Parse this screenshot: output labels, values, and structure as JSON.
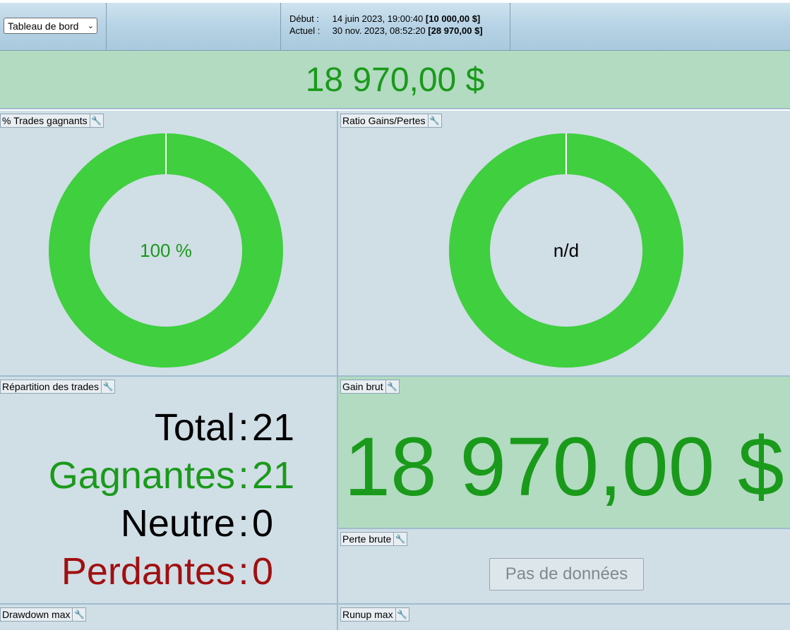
{
  "header": {
    "view_select": "Tableau de bord",
    "start_label": "Début :",
    "start_date": "14 juin 2023, 19:00:40",
    "start_balance": "[10 000,00 $]",
    "current_label": "Actuel :",
    "current_date": "30 nov. 2023, 08:52:20",
    "current_balance": "[28 970,00 $]"
  },
  "net_profit": "18 970,00 $",
  "panels": {
    "win_pct": {
      "title": "% Trades gagnants",
      "value_label": "100 %",
      "fill_fraction": 1.0
    },
    "profit_ratio": {
      "title": "Ratio Gains/Pertes",
      "value_label": "n/d",
      "fill_fraction": 1.0
    },
    "distribution": {
      "title": "Répartition des trades",
      "rows": [
        {
          "label": "Total",
          "sep": ":",
          "value": "21"
        },
        {
          "label": "Gagnantes",
          "sep": ":",
          "value": "21"
        },
        {
          "label": "Neutre",
          "sep": ":",
          "value": "0"
        },
        {
          "label": "Perdantes",
          "sep": ":",
          "value": "0"
        }
      ]
    },
    "gross_gain": {
      "title": "Gain brut",
      "value": "18 970,00 $"
    },
    "gross_loss": {
      "title": "Perte brute",
      "no_data": "Pas de données"
    },
    "max_drawdown": {
      "title": "Drawdown max"
    },
    "max_runup": {
      "title": "Runup max"
    }
  },
  "colors": {
    "win_green": "#1a9a1a",
    "loss_red": "#a01010",
    "donut_green": "#3fcf3f",
    "panel_bg": "#d0dee6",
    "highlight_bg": "#b2dbc1"
  },
  "icons": {
    "panel_settings": "wrench-icon",
    "select_dropdown": "chevron-down-icon"
  }
}
